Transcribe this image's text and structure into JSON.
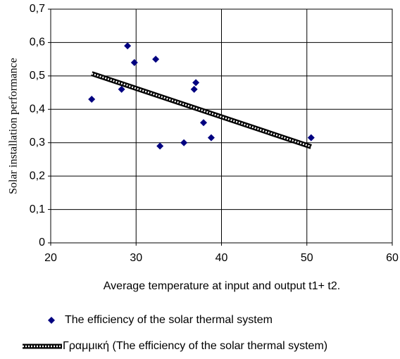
{
  "chart_data": {
    "type": "scatter",
    "x_label": "Average temperature at input and output t1+ t2.",
    "y_label": "Solar installation performance",
    "xlim": [
      20,
      60
    ],
    "xticks": [
      20,
      30,
      40,
      50,
      60
    ],
    "ylim": [
      0,
      0.7
    ],
    "yticks": [
      0,
      {
        "value": 0.1,
        "label": "0,1"
      },
      {
        "value": 0.2,
        "label": "0,2"
      },
      {
        "value": 0.3,
        "label": "0,3"
      },
      {
        "value": 0.4,
        "label": "0,4"
      },
      {
        "value": 0.5,
        "label": "0,5"
      },
      {
        "value": 0.6,
        "label": "0,6"
      },
      {
        "value": 0.7,
        "label": "0,7"
      }
    ],
    "grid": true,
    "series": [
      {
        "name": "The efficiency of the solar thermal system",
        "color": "#000080",
        "x": [
          24.8,
          28.3,
          29.0,
          29.8,
          32.3,
          32.8,
          35.6,
          36.8,
          37.0,
          37.9,
          38.8,
          50.5
        ],
        "values": [
          0.43,
          0.46,
          0.59,
          0.54,
          0.55,
          0.29,
          0.3,
          0.46,
          0.48,
          0.36,
          0.315,
          0.315
        ]
      },
      {
        "name": "Γραμμική (The efficiency of the solar thermal system)",
        "color": "#000000",
        "x": [
          24.8,
          50.5
        ],
        "values": [
          0.507,
          0.288
        ]
      }
    ]
  }
}
